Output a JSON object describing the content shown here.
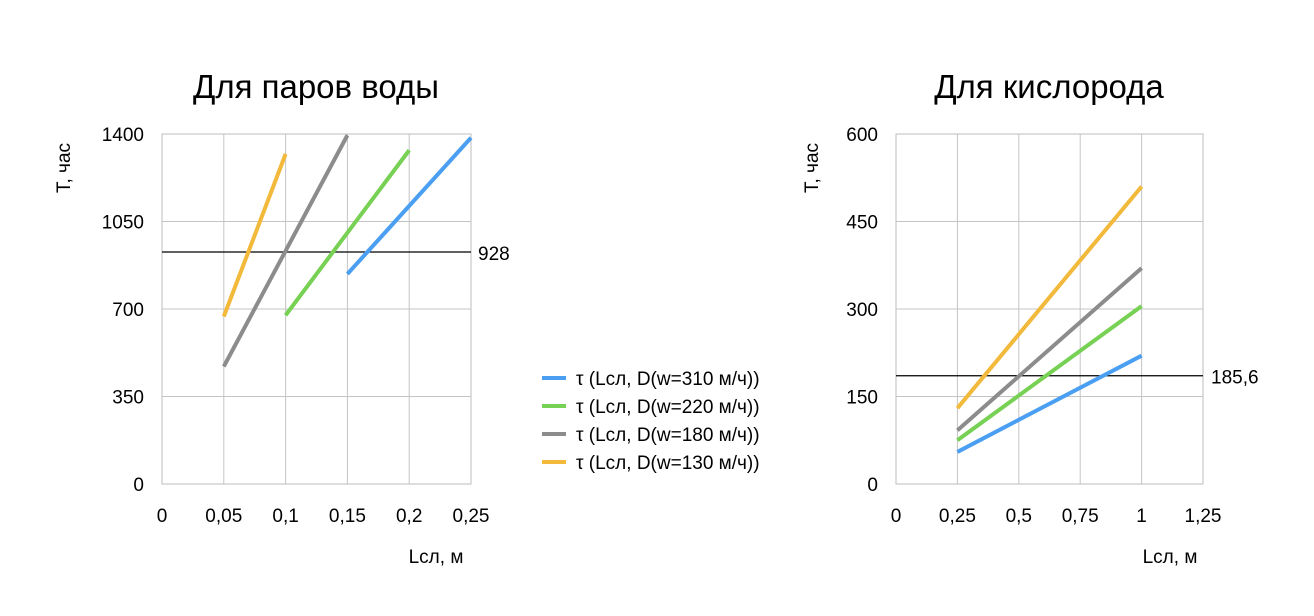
{
  "legend": {
    "items": [
      {
        "label": "τ (Lсл, D(w=310 м/ч))",
        "color": "#4a9ff2"
      },
      {
        "label": "τ (Lсл, D(w=220 м/ч))",
        "color": "#77d154"
      },
      {
        "label": "τ (Lсл, D(w=180 м/ч))",
        "color": "#8c8c8c"
      },
      {
        "label": "τ (Lсл, D(w=130 м/ч))",
        "color": "#f2b93b"
      }
    ]
  },
  "chart_data": [
    {
      "type": "line",
      "title": "Для паров воды",
      "xlabel": "Lсл, м",
      "ylabel": "T, час",
      "xlim": [
        0,
        0.25
      ],
      "ylim": [
        0,
        1400
      ],
      "xticks": [
        0,
        0.05,
        0.1,
        0.15,
        0.2,
        0.25
      ],
      "xtick_labels": [
        "0",
        "0,05",
        "0,1",
        "0,15",
        "0,2",
        "0,25"
      ],
      "yticks": [
        0,
        350,
        700,
        1050,
        1400
      ],
      "ytick_labels": [
        "0",
        "350",
        "700",
        "1050",
        "1400"
      ],
      "grid": true,
      "reference_line": {
        "y": 928,
        "label": "928"
      },
      "series": [
        {
          "name": "τ (Lсл, D(w=310 м/ч))",
          "color": "#4a9ff2",
          "x": [
            0.15,
            0.25
          ],
          "y": [
            840,
            1385
          ]
        },
        {
          "name": "τ (Lсл, D(w=220 м/ч))",
          "color": "#77d154",
          "x": [
            0.1,
            0.2
          ],
          "y": [
            675,
            1335
          ]
        },
        {
          "name": "τ (Lсл, D(w=180 м/ч))",
          "color": "#8c8c8c",
          "x": [
            0.05,
            0.15
          ],
          "y": [
            470,
            1395
          ]
        },
        {
          "name": "τ (Lсл, D(w=130 м/ч))",
          "color": "#f2b93b",
          "x": [
            0.05,
            0.1
          ],
          "y": [
            670,
            1320
          ]
        }
      ]
    },
    {
      "type": "line",
      "title": "Для кислорода",
      "xlabel": "Lсл, м",
      "ylabel": "T, час",
      "xlim": [
        0,
        1.25
      ],
      "ylim": [
        0,
        600
      ],
      "xticks": [
        0,
        0.25,
        0.5,
        0.75,
        1,
        1.25
      ],
      "xtick_labels": [
        "0",
        "0,25",
        "0,5",
        "0,75",
        "1",
        "1,25"
      ],
      "yticks": [
        0,
        150,
        300,
        450,
        600
      ],
      "ytick_labels": [
        "0",
        "150",
        "300",
        "450",
        "600"
      ],
      "grid": true,
      "reference_line": {
        "y": 185.6,
        "label": "185,6"
      },
      "series": [
        {
          "name": "τ (Lсл, D(w=310 м/ч))",
          "color": "#4a9ff2",
          "x": [
            0.25,
            1
          ],
          "y": [
            55,
            220
          ]
        },
        {
          "name": "τ (Lсл, D(w=220 м/ч))",
          "color": "#77d154",
          "x": [
            0.25,
            1
          ],
          "y": [
            75,
            305
          ]
        },
        {
          "name": "τ (Lсл, D(w=180 м/ч))",
          "color": "#8c8c8c",
          "x": [
            0.25,
            1
          ],
          "y": [
            92,
            370
          ]
        },
        {
          "name": "τ (Lсл, D(w=130 м/ч))",
          "color": "#f2b93b",
          "x": [
            0.25,
            1
          ],
          "y": [
            130,
            510
          ]
        }
      ]
    }
  ]
}
